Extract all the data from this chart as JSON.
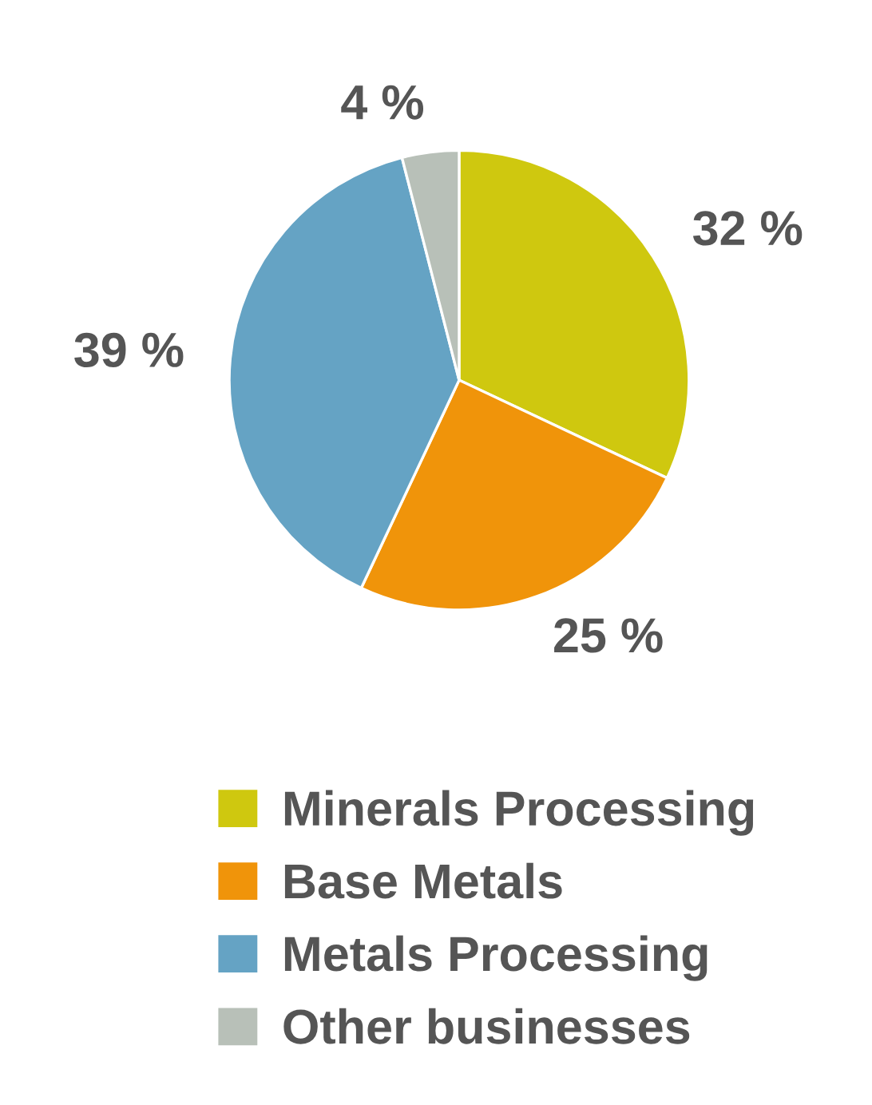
{
  "chart_data": {
    "type": "pie",
    "categories": [
      "Minerals Processing",
      "Base Metals",
      "Metals Processing",
      "Other businesses"
    ],
    "values": [
      32,
      25,
      39,
      4
    ],
    "value_labels": [
      "32 %",
      "25 %",
      "39 %",
      "4 %"
    ],
    "colors": [
      "#cfc80f",
      "#f0940a",
      "#65a3c4",
      "#b8c0b8"
    ],
    "legend": "bottom"
  }
}
